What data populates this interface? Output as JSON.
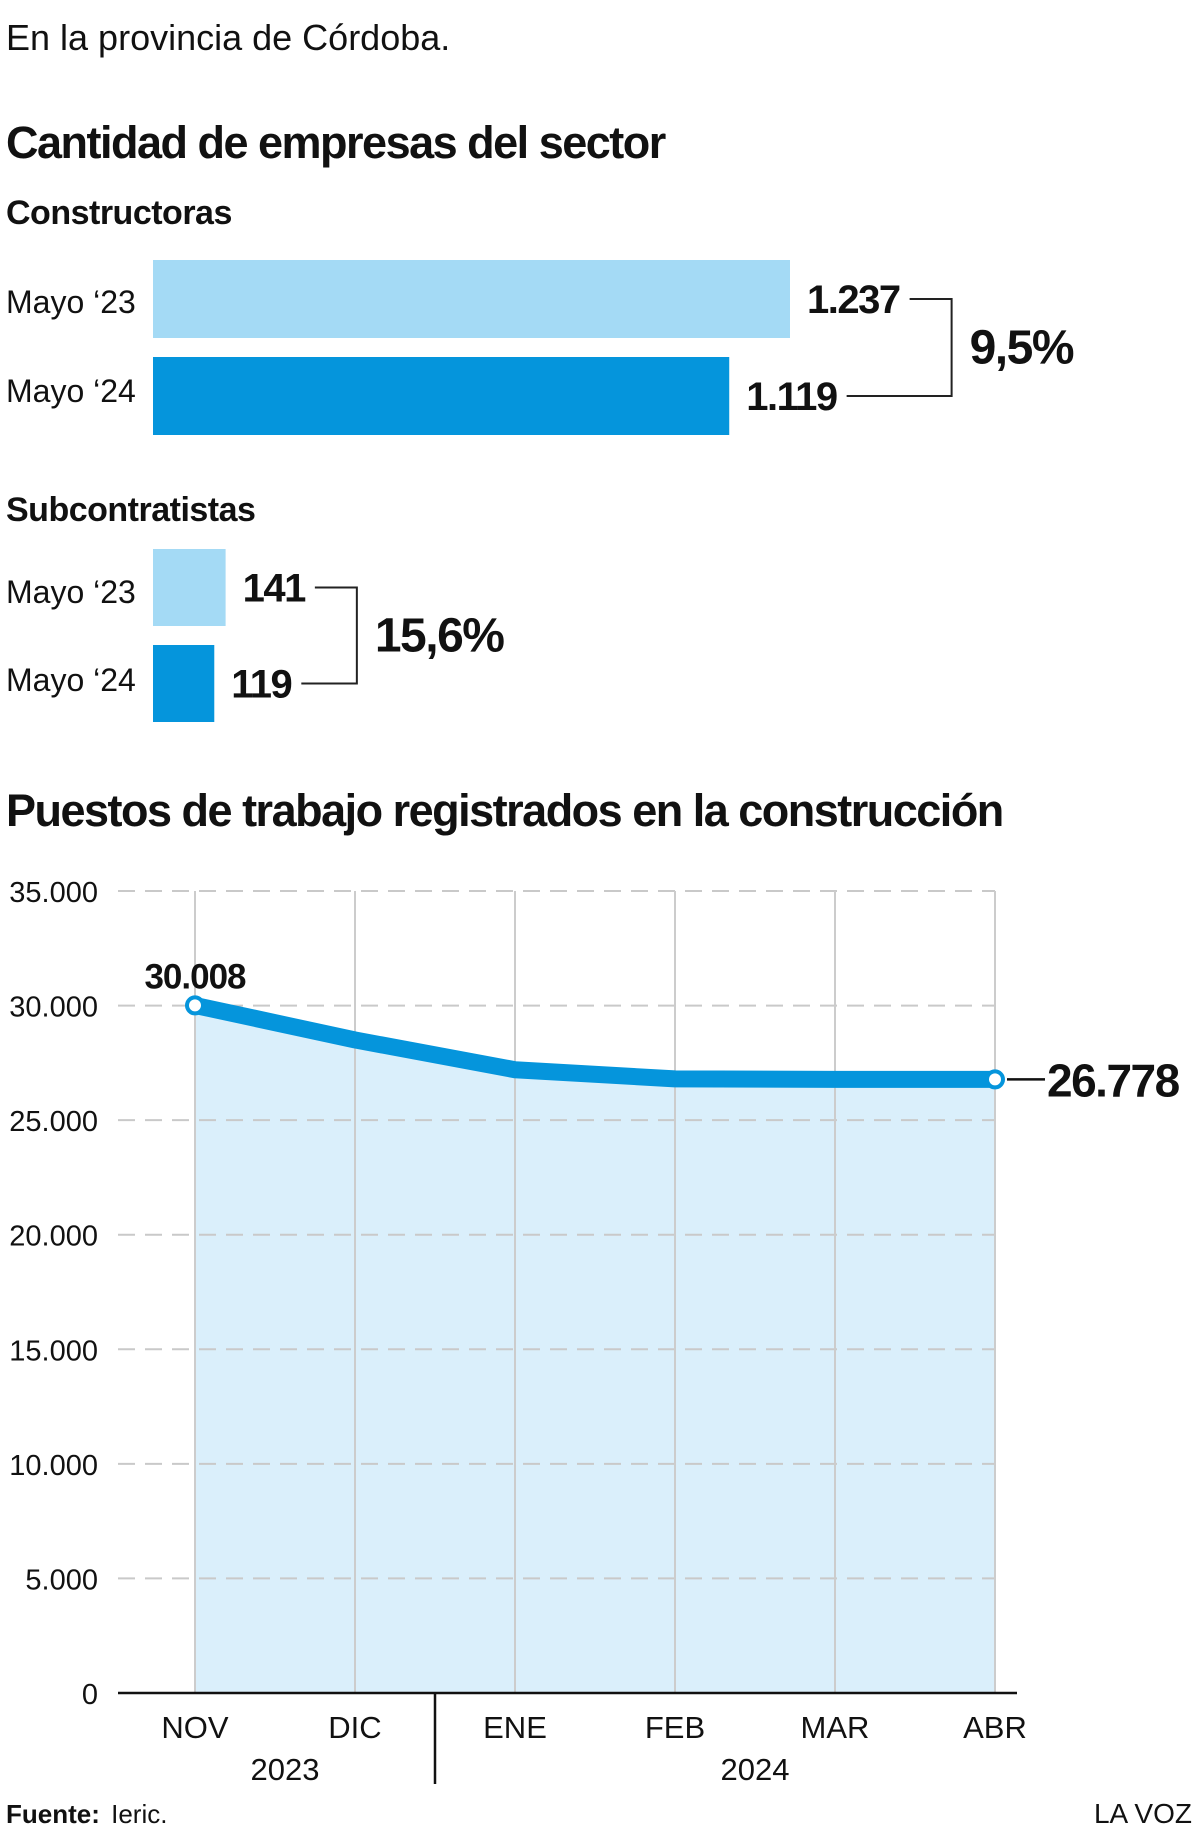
{
  "header": {
    "intro": "En la provincia de Córdoba."
  },
  "companies": {
    "title": "Cantidad de empresas del sector",
    "colors": {
      "mayo23": "#a4daf5",
      "mayo24": "#0595dc"
    },
    "groups": [
      {
        "title": "Constructoras",
        "change_label": "9,5%",
        "bars": [
          {
            "label": "Mayo ‘23",
            "value": 1237,
            "value_label": "1.237"
          },
          {
            "label": "Mayo ‘24",
            "value": 1119,
            "value_label": "1.119"
          }
        ]
      },
      {
        "title": "Subcontratistas",
        "change_label": "15,6%",
        "bars": [
          {
            "label": "Mayo ‘23",
            "value": 141,
            "value_label": "141"
          },
          {
            "label": "Mayo ‘24",
            "value": 119,
            "value_label": "119"
          }
        ]
      }
    ]
  },
  "jobs": {
    "title": "Puestos de trabajo registrados en la construcción"
  },
  "chart_data": [
    {
      "type": "bar",
      "title": "Constructoras",
      "categories": [
        "Mayo ‘23",
        "Mayo ‘24"
      ],
      "values": [
        1237,
        1119
      ],
      "data_labels": [
        "1.237",
        "1.119"
      ],
      "annotation": "9,5%"
    },
    {
      "type": "bar",
      "title": "Subcontratistas",
      "categories": [
        "Mayo ‘23",
        "Mayo ‘24"
      ],
      "values": [
        141,
        119
      ],
      "data_labels": [
        "141",
        "119"
      ],
      "annotation": "15,6%"
    },
    {
      "type": "area",
      "title": "Puestos de trabajo registrados en la construcción",
      "categories": [
        "NOV",
        "DIC",
        "ENE",
        "FEB",
        "MAR",
        "ABR"
      ],
      "year_groups": [
        {
          "label": "2023",
          "span": [
            "NOV",
            "DIC"
          ]
        },
        {
          "label": "2024",
          "span": [
            "ENE",
            "FEB",
            "MAR",
            "ABR"
          ]
        }
      ],
      "values": [
        30008,
        28500,
        27200,
        26800,
        26778,
        26778
      ],
      "ylim": [
        0,
        35000
      ],
      "yticks": [
        0,
        5000,
        10000,
        15000,
        20000,
        25000,
        30000,
        35000
      ],
      "ytick_labels": [
        "0",
        "5.000",
        "10.000",
        "15.000",
        "20.000",
        "25.000",
        "30.000",
        "35.000"
      ],
      "data_labels": [
        {
          "index": 0,
          "text": "30.008"
        },
        {
          "index": 5,
          "text": "26.778"
        }
      ],
      "grid": true,
      "line_color": "#0595dc",
      "fill_color": "#daeffb"
    }
  ],
  "footer": {
    "source_label": "Fuente:",
    "source_value": "Ieric.",
    "brand": "LA VOZ"
  }
}
